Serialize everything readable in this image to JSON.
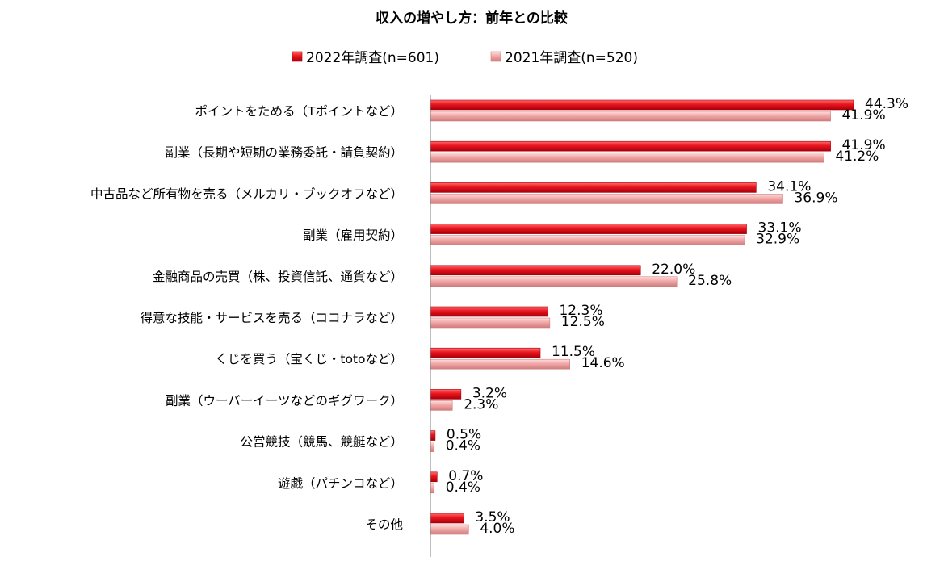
{
  "chart_data": {
    "type": "bar",
    "orientation": "horizontal",
    "title": "収入の増やし方：前年との比較",
    "legend_position": "top",
    "categories": [
      "ポイントをためる（Tポイントなど）",
      "副業（長期や短期の業務委託・請負契約）",
      "中古品など所有物を売る（メルカリ・ブックオフなど）",
      "副業（雇用契約）",
      "金融商品の売買（株、投資信託、通貨など）",
      "得意な技能・サービスを売る（ココナラなど）",
      "くじを買う（宝くじ・totoなど）",
      "副業（ウーバーイーツなどのギグワーク）",
      "公営競技（競馬、競艇など）",
      "遊戯（パチンコなど）",
      "その他"
    ],
    "series": [
      {
        "name": "2022年調査(n=601)",
        "color": "#e8141e",
        "values": [
          44.3,
          41.9,
          34.1,
          33.1,
          22.0,
          12.3,
          11.5,
          3.2,
          0.5,
          0.7,
          3.5
        ],
        "labels": [
          "44.3%",
          "41.9%",
          "34.1%",
          "33.1%",
          "22.0%",
          "12.3%",
          "11.5%",
          "3.2%",
          "0.5%",
          "0.7%",
          "3.5%"
        ]
      },
      {
        "name": "2021年調査(n=520)",
        "color": "#f2a7a7",
        "values": [
          41.9,
          41.2,
          36.9,
          32.9,
          25.8,
          12.5,
          14.6,
          2.3,
          0.4,
          0.4,
          4.0
        ],
        "labels": [
          "41.9%",
          "41.2%",
          "36.9%",
          "32.9%",
          "25.8%",
          "12.5%",
          "14.6%",
          "2.3%",
          "0.4%",
          "0.4%",
          "4.0%"
        ]
      }
    ],
    "xlim": [
      0,
      50
    ],
    "grid": false
  }
}
